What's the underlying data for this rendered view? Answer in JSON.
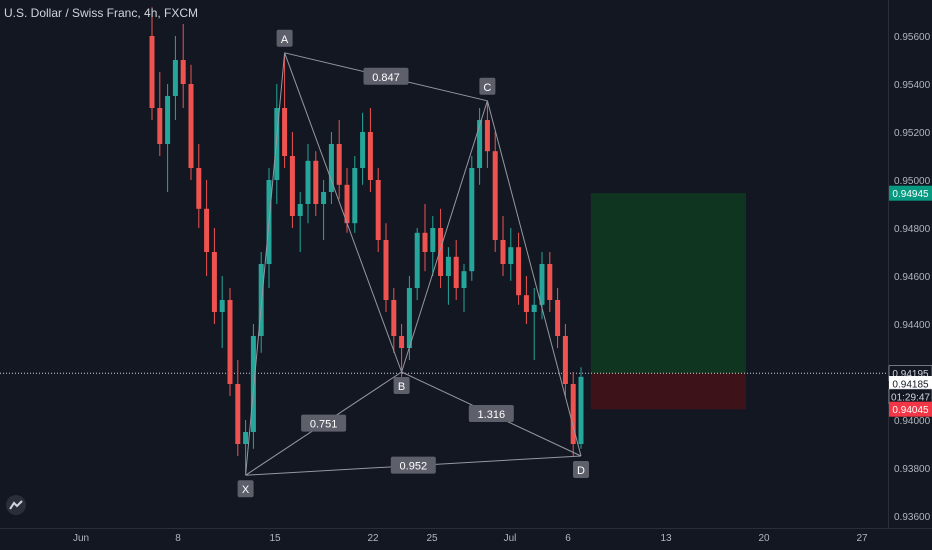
{
  "header": {
    "title": "U.S. Dollar / Swiss Franc, 4h, FXCM"
  },
  "colors": {
    "background": "#131722",
    "up": "#26a69a",
    "down": "#ef5350",
    "target_zone": "#0f3521",
    "stop_zone": "#3d1219",
    "pattern_line": "#9598a1",
    "price_badge_green": "#089981",
    "price_badge_red": "#f23645"
  },
  "chart_data": {
    "type": "candlestick",
    "title": "U.S. Dollar / Swiss Franc, 4h, FXCM",
    "ylim": [
      0.9355,
      0.9575
    ],
    "y_ticks": [
      0.936,
      0.938,
      0.94,
      0.942,
      0.944,
      0.946,
      0.948,
      0.95,
      0.952,
      0.954,
      0.956
    ],
    "x_ticks": [
      "Jun",
      "8",
      "15",
      "22",
      "25",
      "Jul",
      "6",
      "13",
      "20",
      "27"
    ],
    "grid": false,
    "candles": [
      [
        0.956,
        0.9572,
        0.9525,
        0.953
      ],
      [
        0.953,
        0.9545,
        0.951,
        0.9515
      ],
      [
        0.9515,
        0.954,
        0.9495,
        0.9535
      ],
      [
        0.9535,
        0.956,
        0.9525,
        0.955
      ],
      [
        0.955,
        0.9565,
        0.953,
        0.954
      ],
      [
        0.954,
        0.9548,
        0.95,
        0.9505
      ],
      [
        0.9505,
        0.9515,
        0.948,
        0.9488
      ],
      [
        0.9488,
        0.95,
        0.946,
        0.947
      ],
      [
        0.947,
        0.948,
        0.944,
        0.9445
      ],
      [
        0.9445,
        0.946,
        0.943,
        0.945
      ],
      [
        0.945,
        0.9455,
        0.941,
        0.9415
      ],
      [
        0.9415,
        0.9425,
        0.9385,
        0.939
      ],
      [
        0.939,
        0.94,
        0.9378,
        0.9395
      ],
      [
        0.9395,
        0.944,
        0.9388,
        0.9435
      ],
      [
        0.9435,
        0.947,
        0.9428,
        0.9465
      ],
      [
        0.9465,
        0.9505,
        0.9455,
        0.95
      ],
      [
        0.95,
        0.954,
        0.949,
        0.953
      ],
      [
        0.953,
        0.9553,
        0.9505,
        0.951
      ],
      [
        0.951,
        0.952,
        0.948,
        0.9485
      ],
      [
        0.9485,
        0.9495,
        0.947,
        0.949
      ],
      [
        0.949,
        0.9515,
        0.9482,
        0.9508
      ],
      [
        0.9508,
        0.9512,
        0.9485,
        0.949
      ],
      [
        0.949,
        0.95,
        0.9475,
        0.9495
      ],
      [
        0.9495,
        0.952,
        0.949,
        0.9515
      ],
      [
        0.9515,
        0.9525,
        0.9492,
        0.9498
      ],
      [
        0.9498,
        0.9505,
        0.9478,
        0.9482
      ],
      [
        0.9482,
        0.951,
        0.9478,
        0.9505
      ],
      [
        0.9505,
        0.9528,
        0.9498,
        0.952
      ],
      [
        0.952,
        0.953,
        0.9495,
        0.95
      ],
      [
        0.95,
        0.9505,
        0.947,
        0.9475
      ],
      [
        0.9475,
        0.9482,
        0.9445,
        0.945
      ],
      [
        0.945,
        0.9455,
        0.9428,
        0.9435
      ],
      [
        0.9435,
        0.944,
        0.9418,
        0.943
      ],
      [
        0.943,
        0.946,
        0.9425,
        0.9455
      ],
      [
        0.9455,
        0.948,
        0.945,
        0.9478
      ],
      [
        0.9478,
        0.949,
        0.9462,
        0.947
      ],
      [
        0.947,
        0.9485,
        0.946,
        0.948
      ],
      [
        0.948,
        0.9488,
        0.9455,
        0.946
      ],
      [
        0.946,
        0.9472,
        0.9448,
        0.9468
      ],
      [
        0.9468,
        0.9475,
        0.945,
        0.9455
      ],
      [
        0.9455,
        0.9465,
        0.9445,
        0.9462
      ],
      [
        0.9462,
        0.951,
        0.9458,
        0.9505
      ],
      [
        0.9505,
        0.953,
        0.9498,
        0.9525
      ],
      [
        0.9525,
        0.9533,
        0.9505,
        0.9512
      ],
      [
        0.9512,
        0.952,
        0.947,
        0.9475
      ],
      [
        0.9475,
        0.9485,
        0.946,
        0.9465
      ],
      [
        0.9465,
        0.948,
        0.9458,
        0.9472
      ],
      [
        0.9472,
        0.9478,
        0.9448,
        0.9452
      ],
      [
        0.9452,
        0.946,
        0.944,
        0.9445
      ],
      [
        0.9445,
        0.9455,
        0.9425,
        0.9448
      ],
      [
        0.9448,
        0.947,
        0.9442,
        0.9465
      ],
      [
        0.9465,
        0.947,
        0.9445,
        0.945
      ],
      [
        0.945,
        0.9455,
        0.943,
        0.9435
      ],
      [
        0.9435,
        0.944,
        0.941,
        0.9415
      ],
      [
        0.9415,
        0.942,
        0.9385,
        0.939
      ],
      [
        0.939,
        0.9422,
        0.9388,
        0.9418
      ]
    ],
    "pattern": {
      "points": [
        {
          "label": "X",
          "index": 12,
          "price": 0.9377
        },
        {
          "label": "A",
          "index": 17,
          "price": 0.9553
        },
        {
          "label": "B",
          "index": 32,
          "price": 0.942
        },
        {
          "label": "C",
          "index": 43,
          "price": 0.9533
        },
        {
          "label": "D",
          "index": 55,
          "price": 0.9385
        }
      ],
      "ratios": [
        {
          "value": "0.751",
          "from": "X",
          "to": "B"
        },
        {
          "value": "0.847",
          "from": "A",
          "to": "C"
        },
        {
          "value": "1.316",
          "from": "B",
          "to": "D"
        },
        {
          "value": "0.952",
          "from": "X",
          "to": "D"
        }
      ]
    },
    "position": {
      "entry": 0.94195,
      "target": 0.94945,
      "stop": 0.94045
    },
    "price_labels": [
      {
        "value": "0.94945",
        "price": 0.94945,
        "style": "green"
      },
      {
        "value": "0.94195",
        "price": 0.94195,
        "style": "plain"
      },
      {
        "value": "0.94185",
        "price": 0.94152,
        "style": "white"
      },
      {
        "value": "01:29:47",
        "price": 0.94098,
        "style": "plain"
      },
      {
        "value": "0.94045",
        "price": 0.94045,
        "style": "red"
      }
    ],
    "current_price": 0.94195
  }
}
